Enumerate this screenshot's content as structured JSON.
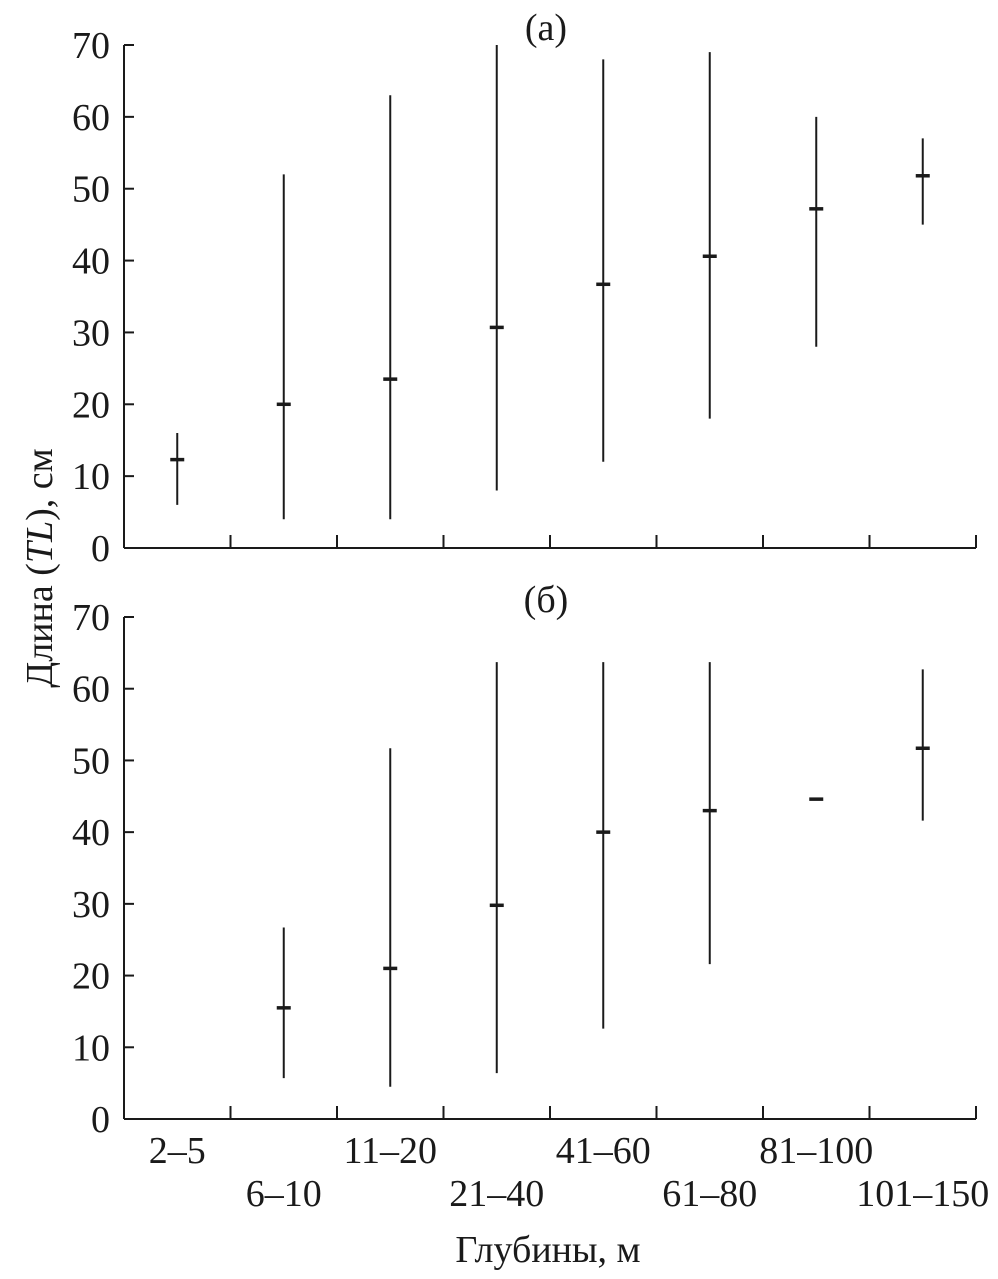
{
  "chart_data": {
    "type": "errorbar",
    "ylabel_prefix": "Длина (",
    "ylabel_italic": "TL",
    "ylabel_suffix": "), см",
    "xlabel": "Глубины, м",
    "categories": [
      "2–5",
      "6–10",
      "11–20",
      "21–40",
      "41–60",
      "61–80",
      "81–100",
      "101–150"
    ],
    "ylim": [
      0,
      70
    ],
    "yticks": [
      "0",
      "10",
      "20",
      "30",
      "40",
      "50",
      "60",
      "70"
    ],
    "grid": false,
    "panels": [
      {
        "label": "(а)",
        "points": [
          {
            "category": "2–5",
            "mean": 12.3,
            "min": 6,
            "max": 16
          },
          {
            "category": "6–10",
            "mean": 20,
            "min": 4,
            "max": 52
          },
          {
            "category": "11–20",
            "mean": 23.5,
            "min": 4,
            "max": 63
          },
          {
            "category": "21–40",
            "mean": 30.7,
            "min": 8,
            "max": 70
          },
          {
            "category": "41–60",
            "mean": 36.7,
            "min": 12,
            "max": 68
          },
          {
            "category": "61–80",
            "mean": 40.6,
            "min": 18,
            "max": 69
          },
          {
            "category": "81–100",
            "mean": 47.2,
            "min": 28,
            "max": 60
          },
          {
            "category": "101–150",
            "mean": 51.8,
            "min": 45,
            "max": 57
          }
        ]
      },
      {
        "label": "(б)",
        "points": [
          {
            "category": "6–10",
            "mean": 15.5,
            "min": 5.7,
            "max": 26.7
          },
          {
            "category": "11–20",
            "mean": 21,
            "min": 4.5,
            "max": 51.7
          },
          {
            "category": "21–40",
            "mean": 29.8,
            "min": 6.4,
            "max": 63.7
          },
          {
            "category": "41–60",
            "mean": 40,
            "min": 12.6,
            "max": 63.7
          },
          {
            "category": "61–80",
            "mean": 43,
            "min": 21.6,
            "max": 63.7
          },
          {
            "category": "81–100",
            "mean": 44.6,
            "min": 44.6,
            "max": 44.6
          },
          {
            "category": "101–150",
            "mean": 51.7,
            "min": 41.6,
            "max": 62.7
          }
        ]
      }
    ]
  }
}
